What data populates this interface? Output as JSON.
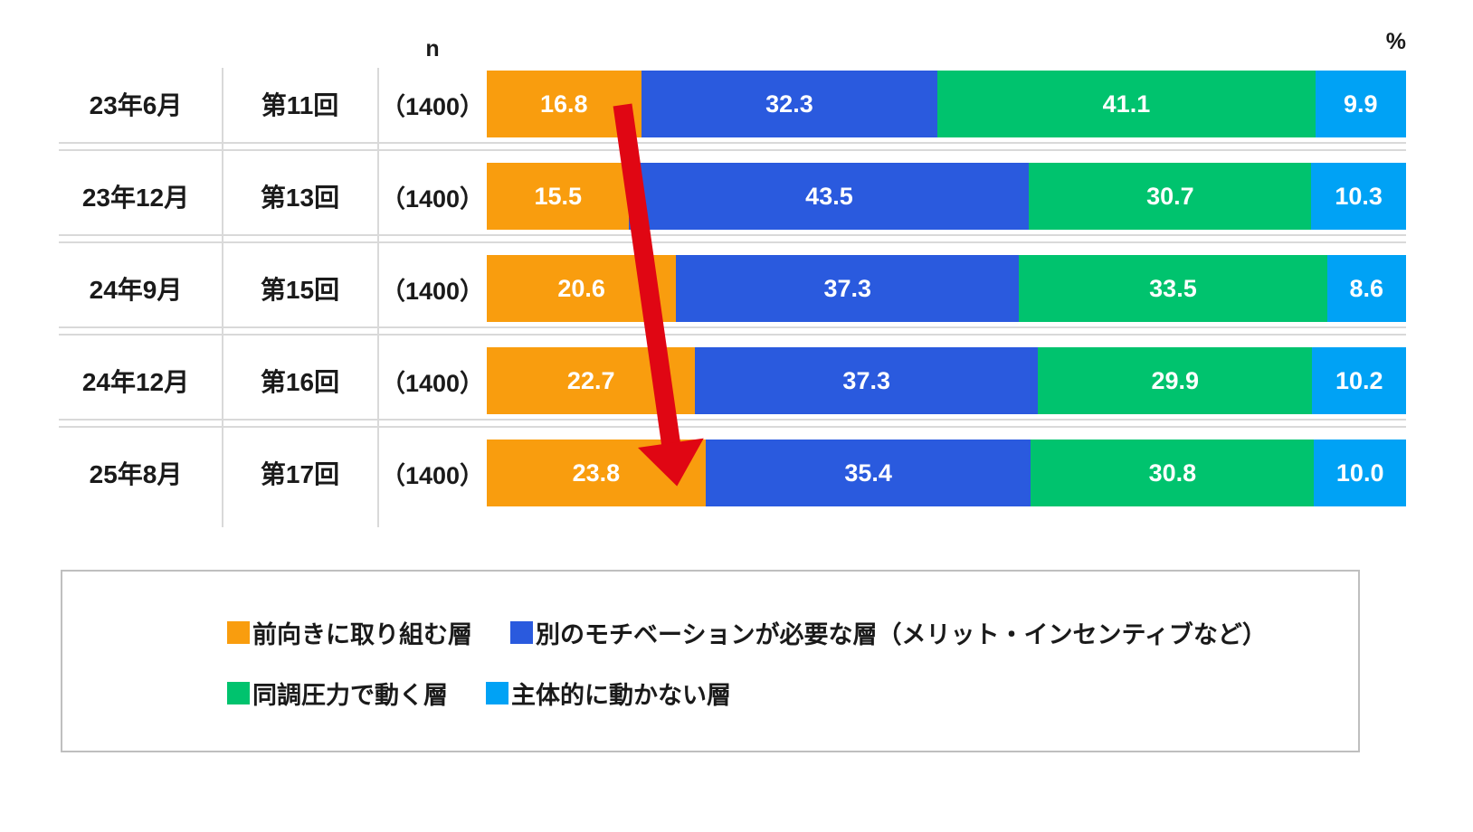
{
  "header": {
    "n_label": "n",
    "percent_label": "%"
  },
  "chart_data": {
    "type": "bar",
    "orientation": "horizontal-stacked",
    "unit": "%",
    "xlim": [
      0,
      100
    ],
    "title": "",
    "series": [
      {
        "name": "前向きに取り組む層",
        "color": "#F99D0E"
      },
      {
        "name": "別のモチベーションが必要な層（メリット・インセンティブなど）",
        "color": "#2A5ADE"
      },
      {
        "name": "同調圧力で動く層",
        "color": "#00C36E"
      },
      {
        "name": "主体的に動かない層",
        "color": "#00A2F5"
      }
    ],
    "rows": [
      {
        "date": "23年6月",
        "wave": "第11回",
        "n": "（1400）",
        "values": [
          "16.8",
          "32.3",
          "41.1",
          "9.9"
        ]
      },
      {
        "date": "23年12月",
        "wave": "第13回",
        "n": "（1400）",
        "values": [
          "15.5",
          "43.5",
          "30.7",
          "10.3"
        ]
      },
      {
        "date": "24年9月",
        "wave": "第15回",
        "n": "（1400）",
        "values": [
          "20.6",
          "37.3",
          "33.5",
          "8.6"
        ]
      },
      {
        "date": "24年12月",
        "wave": "第16回",
        "n": "（1400）",
        "values": [
          "22.7",
          "37.3",
          "29.9",
          "10.2"
        ]
      },
      {
        "date": "25年8月",
        "wave": "第17回",
        "n": "（1400）",
        "values": [
          "23.8",
          "35.4",
          "30.8",
          "10.0"
        ]
      }
    ]
  },
  "legend": {
    "layout_rows": [
      [
        0,
        1
      ],
      [
        2,
        3
      ]
    ]
  },
  "annotation": {
    "trend_arrow_color": "#E00613"
  },
  "style_colors": {
    "grid_line": "#d9d9d9",
    "legend_border": "#bfbfbf",
    "text": "#1a1a1a"
  }
}
